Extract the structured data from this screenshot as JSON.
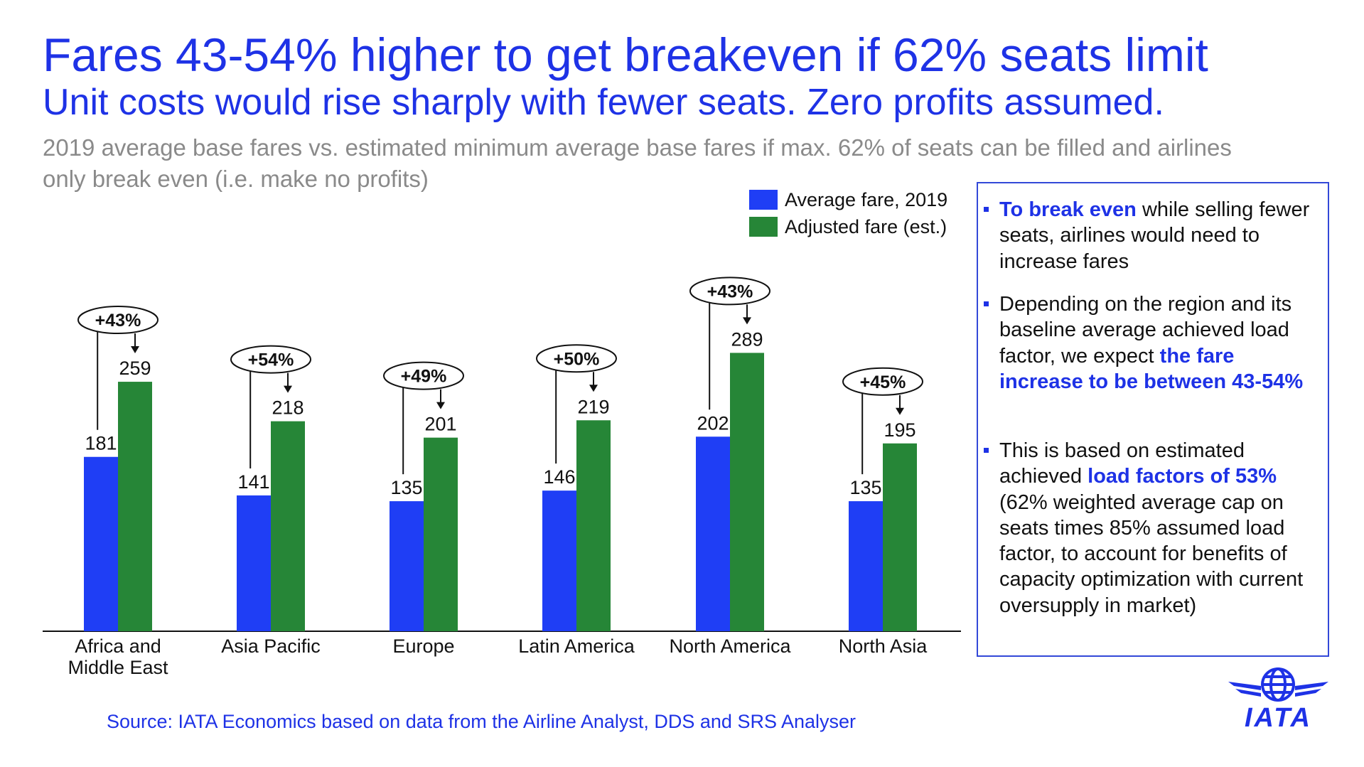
{
  "title": "Fares 43-54% higher to get breakeven if 62% seats limit",
  "subtitle": "Unit costs would rise sharply with fewer seats. Zero profits assumed.",
  "description": "2019 average base fares vs. estimated minimum average base fares if max. 62% of seats can be filled and airlines only break even (i.e. make no profits)",
  "colors": {
    "accent": "#1e32e6",
    "avg_fare": "#1f3ef5",
    "adjusted_fare": "#268637",
    "subtle_text": "#8a8a8a"
  },
  "chart_data": {
    "type": "bar",
    "categories": [
      "Africa and Middle East",
      "Asia Pacific",
      "Europe",
      "Latin America",
      "North America",
      "North Asia"
    ],
    "series": [
      {
        "name": "Average fare, 2019",
        "values": [
          181,
          141,
          135,
          146,
          202,
          135
        ]
      },
      {
        "name": "Adjusted fare (est.)",
        "values": [
          259,
          218,
          201,
          219,
          289,
          195
        ]
      }
    ],
    "annotations": [
      "+43%",
      "+54%",
      "+49%",
      "+50%",
      "+43%",
      "+45%"
    ],
    "ylim": [
      0,
      400
    ],
    "grid": false,
    "legend_position": "top-right"
  },
  "legend": [
    "Average fare, 2019",
    "Adjusted fare (est.)"
  ],
  "panel": {
    "b1": {
      "hl": "To break even",
      "text": " while selling fewer seats, airlines would need to increase fares"
    },
    "b2": {
      "text": "Depending on the region and its baseline average achieved load factor, we expect ",
      "hl": "the fare increase to be between 43-54%"
    },
    "b3": {
      "text1": "This is based on estimated achieved ",
      "hl": "load factors of 53%",
      "text2": " (62% weighted average cap on seats times 85% assumed load factor, to account for benefits of capacity optimization with current oversupply in market)"
    }
  },
  "source": "Source: IATA Economics based on data from the Airline Analyst, DDS and SRS Analyser",
  "logo": {
    "text": "IATA",
    "icon": "globe-wings-icon"
  }
}
